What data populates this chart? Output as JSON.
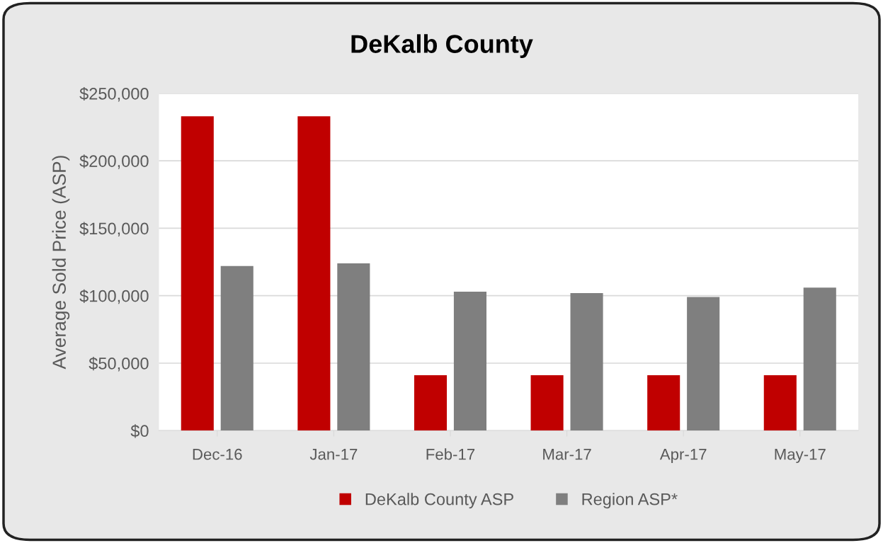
{
  "chart_data": {
    "type": "bar",
    "title": "DeKalb County",
    "ylabel": "Average Sold Price (ASP)",
    "categories": [
      "Dec-16",
      "Jan-17",
      "Feb-17",
      "Mar-17",
      "Apr-17",
      "May-17"
    ],
    "series": [
      {
        "name": "DeKalb County ASP",
        "color": "#c00000",
        "values": [
          233000,
          233000,
          41000,
          41000,
          41000,
          41000
        ]
      },
      {
        "name": "Region ASP*",
        "color": "#7f7f7f",
        "values": [
          122000,
          124000,
          103000,
          102000,
          99000,
          106000
        ]
      }
    ],
    "ylim": [
      0,
      250000
    ],
    "yticks": [
      {
        "value": 0,
        "label": "$0"
      },
      {
        "value": 50000,
        "label": "$50,000"
      },
      {
        "value": 100000,
        "label": "$100,000"
      },
      {
        "value": 150000,
        "label": "$150,000"
      },
      {
        "value": 200000,
        "label": "$200,000"
      },
      {
        "value": 250000,
        "label": "$250,000"
      }
    ],
    "grid": "y",
    "legend": "bottom"
  }
}
